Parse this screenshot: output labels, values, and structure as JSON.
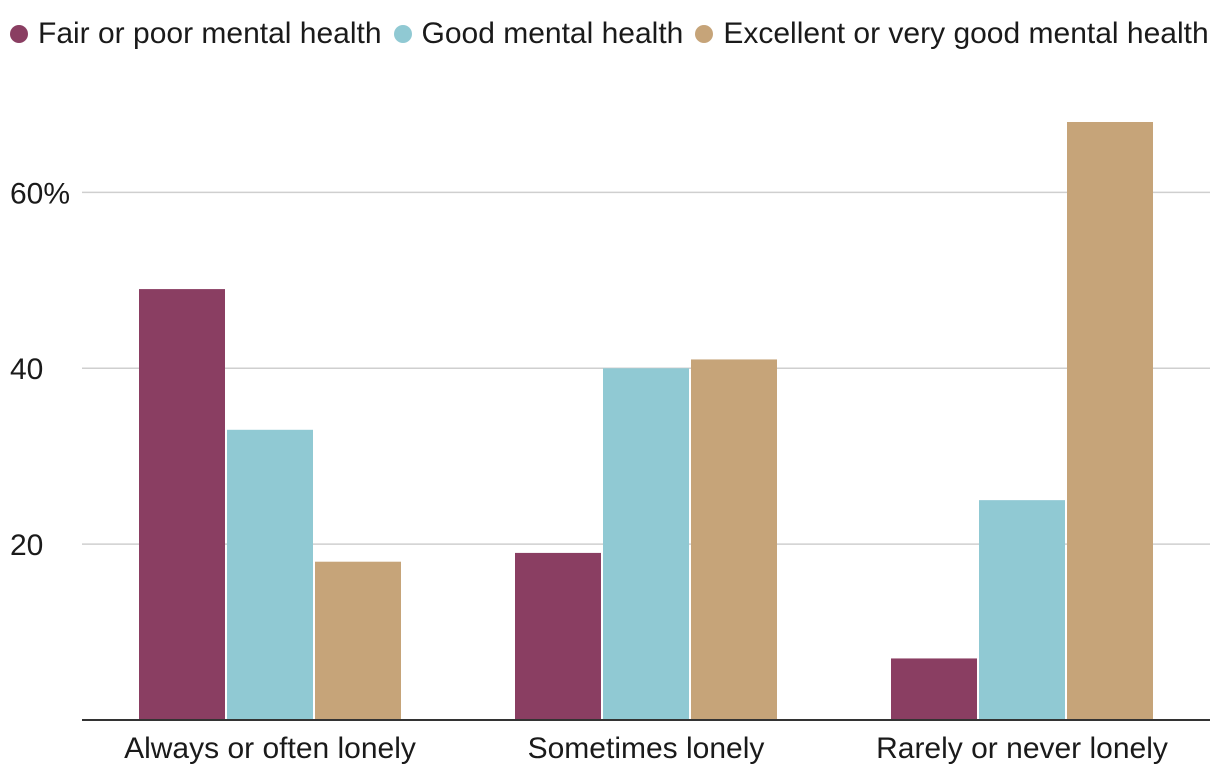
{
  "chart_data": {
    "type": "bar",
    "title": "",
    "xlabel": "",
    "ylabel": "",
    "categories": [
      "Always or often lonely",
      "Sometimes lonely",
      "Rarely or never lonely"
    ],
    "series": [
      {
        "name": "Fair or poor mental health",
        "color": "#8a3e62",
        "values": [
          49,
          19,
          7
        ]
      },
      {
        "name": "Good mental health",
        "color": "#90c9d3",
        "values": [
          33,
          40,
          25
        ]
      },
      {
        "name": "Excellent or very good mental health",
        "color": "#c6a479",
        "values": [
          18,
          41,
          68
        ]
      }
    ],
    "ylim": [
      0,
      68
    ],
    "yticks": [
      {
        "value": 20,
        "label": "20"
      },
      {
        "value": 40,
        "label": "40"
      },
      {
        "value": 60,
        "label": "60%"
      }
    ],
    "grid": true,
    "legend_position": "top-left"
  }
}
